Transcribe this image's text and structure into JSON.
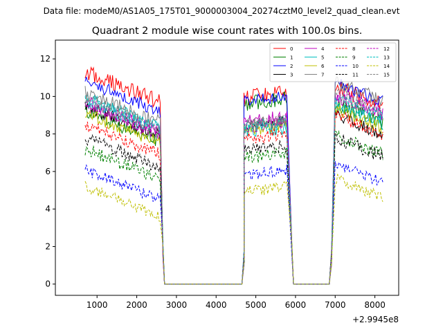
{
  "suptitle": "Data file: modeM0/AS1A05_175T01_9000003004_20274cztM0_level2_quad_clean.evt",
  "chart_data": {
    "type": "line",
    "title": "Quadrant 2 module wise count rates with 100.0s bins.",
    "xlabel": "",
    "ylabel": "",
    "offset_text": "+2.9945e8",
    "xlim": [
      -50,
      8600
    ],
    "ylim": [
      -0.6,
      13.0
    ],
    "xticks": [
      1000,
      2000,
      3000,
      4000,
      5000,
      6000,
      7000,
      8000
    ],
    "yticks": [
      0,
      2,
      4,
      6,
      8,
      10,
      12
    ],
    "x_segments": [
      [
        700,
        2600
      ],
      [
        4700,
        5800
      ],
      [
        7000,
        8200
      ]
    ],
    "x_gaps_to_zero": [
      [
        2700,
        4650
      ],
      [
        5950,
        6850
      ]
    ],
    "legend": {
      "location": "top-right",
      "columns": 4
    },
    "series": [
      {
        "name": "0",
        "color": "#ff0000",
        "dash": "solid",
        "levels": [
          11.3,
          9.9,
          10.5
        ],
        "amp": 0.45
      },
      {
        "name": "1",
        "color": "#008000",
        "dash": "solid",
        "levels": [
          9.2,
          9.6,
          9.6
        ],
        "amp": 0.4
      },
      {
        "name": "2",
        "color": "#0000ff",
        "dash": "solid",
        "levels": [
          10.8,
          9.7,
          10.7
        ],
        "amp": 0.35
      },
      {
        "name": "3",
        "color": "#000000",
        "dash": "solid",
        "levels": [
          9.5,
          8.4,
          9.0
        ],
        "amp": 0.35
      },
      {
        "name": "4",
        "color": "#bf00bf",
        "dash": "solid",
        "levels": [
          9.7,
          8.6,
          10.0
        ],
        "amp": 0.4
      },
      {
        "name": "5",
        "color": "#00bfbf",
        "dash": "solid",
        "levels": [
          9.9,
          8.1,
          9.6
        ],
        "amp": 0.4
      },
      {
        "name": "6",
        "color": "#bfbf00",
        "dash": "solid",
        "levels": [
          9.1,
          8.2,
          9.3
        ],
        "amp": 0.35
      },
      {
        "name": "7",
        "color": "#808080",
        "dash": "solid",
        "levels": [
          10.2,
          8.4,
          10.8
        ],
        "amp": 0.4
      },
      {
        "name": "8",
        "color": "#ff0000",
        "dash": "dashed",
        "levels": [
          8.5,
          7.7,
          9.0
        ],
        "amp": 0.35
      },
      {
        "name": "9",
        "color": "#008000",
        "dash": "dashed",
        "levels": [
          7.2,
          6.7,
          7.9
        ],
        "amp": 0.35
      },
      {
        "name": "10",
        "color": "#0000ff",
        "dash": "dashed",
        "levels": [
          6.1,
          5.8,
          6.4
        ],
        "amp": 0.3
      },
      {
        "name": "11",
        "color": "#000000",
        "dash": "dashed",
        "levels": [
          7.8,
          7.1,
          7.8
        ],
        "amp": 0.35
      },
      {
        "name": "12",
        "color": "#bf00bf",
        "dash": "dashed",
        "levels": [
          9.6,
          8.4,
          10.2
        ],
        "amp": 0.4
      },
      {
        "name": "13",
        "color": "#00bfbf",
        "dash": "dashed",
        "levels": [
          9.8,
          8.3,
          9.9
        ],
        "amp": 0.4
      },
      {
        "name": "14",
        "color": "#bfbf00",
        "dash": "dashed",
        "levels": [
          5.2,
          4.9,
          5.6
        ],
        "amp": 0.3
      },
      {
        "name": "15",
        "color": "#808080",
        "dash": "dashed",
        "levels": [
          9.8,
          8.5,
          10.1
        ],
        "amp": 0.4
      }
    ]
  }
}
